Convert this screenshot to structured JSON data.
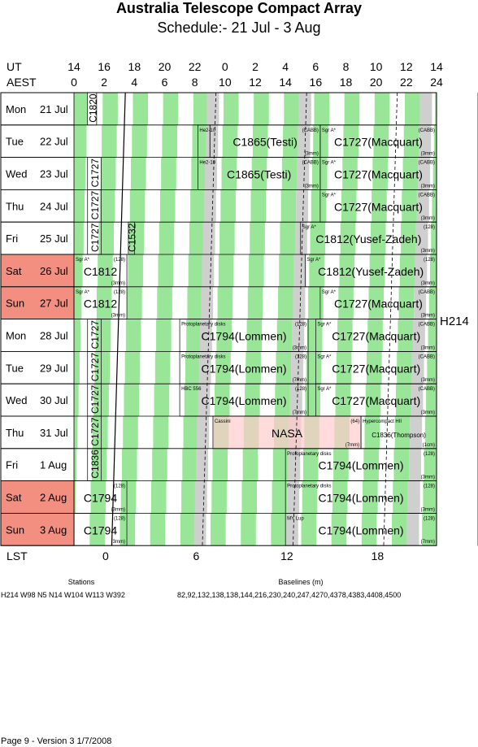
{
  "title": "Australia Telescope Compact Array",
  "subtitle": "Schedule:- 21 Jul - 3  Aug",
  "axis": {
    "ut_label": "UT",
    "aest_label": "AEST",
    "lst_label": "LST",
    "ut_ticks": [
      "14",
      "16",
      "18",
      "20",
      "22",
      "0",
      "2",
      "4",
      "6",
      "8",
      "10",
      "12",
      "14"
    ],
    "aest_ticks": [
      "0",
      "2",
      "4",
      "6",
      "8",
      "10",
      "12",
      "14",
      "16",
      "18",
      "20",
      "22",
      "24"
    ],
    "lst_ticks": [
      "0",
      "6",
      "12",
      "18"
    ]
  },
  "config_label": "H214",
  "rows": [
    {
      "day": "Mon",
      "date": "21 Jul",
      "weekend": false
    },
    {
      "day": "Tue",
      "date": "22 Jul",
      "weekend": false
    },
    {
      "day": "Wed",
      "date": "23 Jul",
      "weekend": false
    },
    {
      "day": "Thu",
      "date": "24 Jul",
      "weekend": false
    },
    {
      "day": "Fri",
      "date": "25 Jul",
      "weekend": false
    },
    {
      "day": "Sat",
      "date": "26 Jul",
      "weekend": true
    },
    {
      "day": "Sun",
      "date": "27 Jul",
      "weekend": true
    },
    {
      "day": "Mon",
      "date": "28 Jul",
      "weekend": false
    },
    {
      "day": "Tue",
      "date": "29 Jul",
      "weekend": false
    },
    {
      "day": "Wed",
      "date": "30 Jul",
      "weekend": false
    },
    {
      "day": "Thu",
      "date": "31 Jul",
      "weekend": false
    },
    {
      "day": "Fri",
      "date": " 1 Aug",
      "weekend": false
    },
    {
      "day": "Sat",
      "date": " 2 Aug",
      "weekend": true
    },
    {
      "day": "Sun",
      "date": " 3 Aug",
      "weekend": true
    }
  ],
  "blocks": [
    {
      "row": 0,
      "start": 0.9,
      "end": 1.5,
      "code": "C1820",
      "vertical": true
    },
    {
      "row": 1,
      "start": 8.2,
      "end": 9.0,
      "code": "",
      "note": "He2-10"
    },
    {
      "row": 1,
      "start": 9.0,
      "end": 16.3,
      "code": "C1865(Testi)",
      "note": "",
      "tag": "(CABB)",
      "sub": "(3mm)"
    },
    {
      "row": 1,
      "start": 16.3,
      "end": 24.0,
      "code": "C1727(Macquart)",
      "note": "Sgr A*",
      "tag": "(CABB)",
      "sub": "(3mm)"
    },
    {
      "row": 2,
      "start": 0.9,
      "end": 1.8,
      "code": "C1727",
      "vertical": true
    },
    {
      "row": 2,
      "start": 8.2,
      "end": 16.3,
      "code": "C1865(Testi)",
      "note": "He2-10",
      "tag": "(CABB)",
      "sub": "(3mm)"
    },
    {
      "row": 2,
      "start": 16.3,
      "end": 24.0,
      "code": "C1727(Macquart)",
      "note": "Sgr A*",
      "tag": "(CABB)",
      "sub": "(3mm)"
    },
    {
      "row": 3,
      "start": 0.9,
      "end": 1.8,
      "code": "C1727",
      "vertical": true
    },
    {
      "row": 3,
      "start": 16.3,
      "end": 24.0,
      "code": "C1727(Macquart)",
      "note": "Sgr A*",
      "tag": "(CABB)",
      "sub": "(3mm)"
    },
    {
      "row": 4,
      "start": 0.9,
      "end": 1.8,
      "code": "C1727",
      "vertical": true
    },
    {
      "row": 4,
      "start": 3.6,
      "end": 4.0,
      "code": "C1532",
      "vertical": true
    },
    {
      "row": 4,
      "start": 15.0,
      "end": 24.0,
      "code": "C1812(Yusef-Zadeh)",
      "note": "Sgr A*",
      "tag": "(128)",
      "sub": "(3mm)"
    },
    {
      "row": 5,
      "start": 0.0,
      "end": 3.5,
      "code": "C1812",
      "note": "Sgr A*",
      "tag": "(128)",
      "sub": "(3mm)"
    },
    {
      "row": 5,
      "start": 15.3,
      "end": 24.0,
      "code": "C1812(Yusef-Zadeh)",
      "note": "Sgr A*",
      "tag": "(128)",
      "sub": "(3mm)"
    },
    {
      "row": 6,
      "start": 0.0,
      "end": 3.5,
      "code": "C1812",
      "note": "Sgr A*",
      "tag": "(128)",
      "sub": "(3mm)"
    },
    {
      "row": 6,
      "start": 16.3,
      "end": 24.0,
      "code": "C1727(Macquart)",
      "note": "Sgr A*",
      "tag": "(CABB)",
      "sub": "(3mm)"
    },
    {
      "row": 7,
      "start": 0.9,
      "end": 1.8,
      "code": "C1727",
      "vertical": true
    },
    {
      "row": 7,
      "start": 7.0,
      "end": 15.5,
      "code": "C1794(Lommen)",
      "note": "Protoplanetary disks",
      "tag": "(128)",
      "sub": "(3mm)"
    },
    {
      "row": 7,
      "start": 16.0,
      "end": 24.0,
      "code": "C1727(Macquart)",
      "note": "Sgr A*",
      "tag": "(CABB)",
      "sub": "(3mm)"
    },
    {
      "row": 8,
      "start": 0.9,
      "end": 1.8,
      "code": "C1727",
      "vertical": true
    },
    {
      "row": 8,
      "start": 7.0,
      "end": 15.5,
      "code": "C1794(Lommen)",
      "note": "Protoplanetary disks",
      "tag": "(128)",
      "sub": "(7mm)"
    },
    {
      "row": 8,
      "start": 16.0,
      "end": 24.0,
      "code": "C1727(Macquart)",
      "note": "Sgr A*",
      "tag": "(CABB)",
      "sub": "(3mm)"
    },
    {
      "row": 9,
      "start": 0.9,
      "end": 1.8,
      "code": "C1727",
      "vertical": true
    },
    {
      "row": 9,
      "start": 7.0,
      "end": 15.5,
      "code": "C1794(Lommen)",
      "note": "HBC 556",
      "tag": "(128)",
      "sub": "(7mm)"
    },
    {
      "row": 9,
      "start": 16.0,
      "end": 24.0,
      "code": "C1727(Macquart)",
      "note": "Sgr A*",
      "tag": "(CABB)",
      "sub": "(3mm)"
    },
    {
      "row": 10,
      "start": 0.9,
      "end": 1.8,
      "code": "C1727",
      "vertical": true
    },
    {
      "row": 10,
      "start": 9.2,
      "end": 19.0,
      "code": "NASA",
      "note": "Cassini",
      "tag": "(64)",
      "sub": "(7mm)",
      "nasa": true
    },
    {
      "row": 10,
      "start": 19.0,
      "end": 24.0,
      "code": "C1836(Thompson)",
      "note": "Hypercompact HII",
      "tag": "",
      "sub": "(1cm)",
      "small": true
    },
    {
      "row": 11,
      "start": 0.9,
      "end": 1.8,
      "code": "C1836",
      "vertical": true
    },
    {
      "row": 11,
      "start": 14.0,
      "end": 24.0,
      "code": "C1794(Lommen)",
      "note": "Protoplanetary disks",
      "tag": "(128)",
      "sub": "(3mm)"
    },
    {
      "row": 12,
      "start": 0.0,
      "end": 3.5,
      "code": "C1794",
      "note": "",
      "tag": "(128)",
      "sub": "(3mm)"
    },
    {
      "row": 12,
      "start": 14.0,
      "end": 24.0,
      "code": "C1794(Lommen)",
      "note": "Protoplanetary disks",
      "tag": "(128)",
      "sub": "(3mm)"
    },
    {
      "row": 13,
      "start": 0.0,
      "end": 3.5,
      "code": "C1794",
      "note": "",
      "tag": "(128)",
      "sub": "(3mm)"
    },
    {
      "row": 13,
      "start": 14.0,
      "end": 24.0,
      "code": "C1794(Lommen)",
      "note": "MY Lup",
      "tag": "(128)",
      "sub": "(7mm)"
    }
  ],
  "stations": {
    "title": "Stations",
    "text": "H214   W98 N5 N14 W104 W113 W392"
  },
  "baselines": {
    "title": "Baselines (m)",
    "text": "82,92,132,138,138,144,216,230,240,247,4270,4378,4383,4408,4500"
  },
  "footer": "Page 9 - Version 3  1/7/2008",
  "colors": {
    "green": "#99e699",
    "gray": "#cfcfcf",
    "weekend": "#f28f80",
    "nasa": "#ffcccc"
  }
}
